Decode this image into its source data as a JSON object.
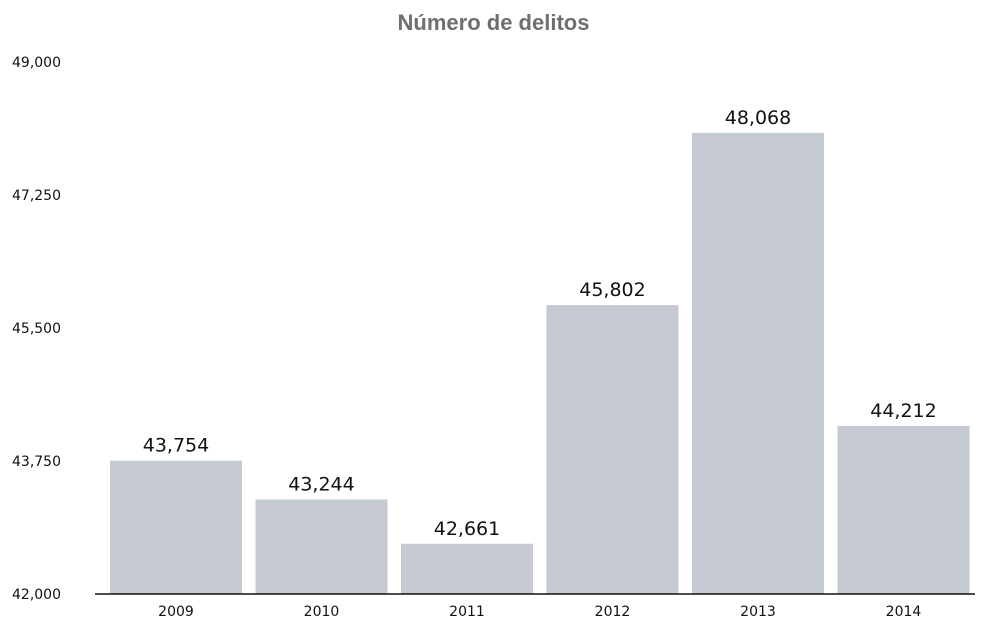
{
  "colors": {
    "bar": "#c5c9d1",
    "title": "#6d6f73",
    "axis": "#111111"
  },
  "chart_data": {
    "type": "bar",
    "title": "Número de delitos",
    "xlabel": "",
    "ylabel": "",
    "categories": [
      "2009",
      "2010",
      "2011",
      "2012",
      "2013",
      "2014"
    ],
    "values": [
      43754,
      43244,
      42661,
      45802,
      48068,
      44212
    ],
    "value_labels": [
      "43,754",
      "43,244",
      "42,661",
      "45,802",
      "48,068",
      "44,212"
    ],
    "ylim": [
      42000,
      49000
    ],
    "yticks": [
      42000,
      43750,
      45500,
      47250,
      49000
    ],
    "ytick_labels": [
      "42,000",
      "43,750",
      "45,500",
      "47,250",
      "49,000"
    ],
    "grid": false,
    "legend": "none"
  }
}
